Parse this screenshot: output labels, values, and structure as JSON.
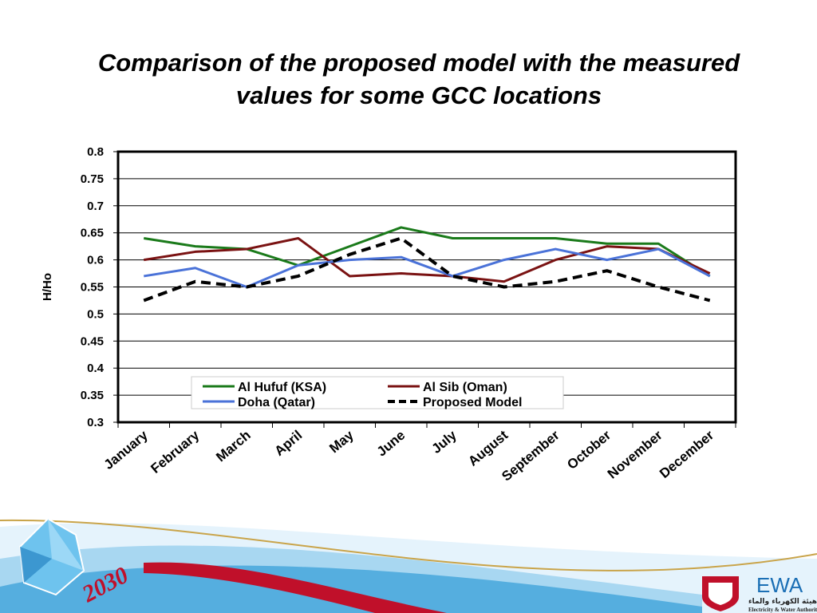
{
  "title": {
    "line1": "Comparison of the proposed model with the measured",
    "line2": "values for some GCC locations"
  },
  "chart_data": {
    "type": "line",
    "categories": [
      "January",
      "February",
      "March",
      "April",
      "May",
      "June",
      "July",
      "August",
      "September",
      "October",
      "November",
      "December"
    ],
    "ylabel": "H/Ho",
    "xlabel": "",
    "ylim": [
      0.3,
      0.8
    ],
    "yticks": [
      "0.8",
      "0.75",
      "0.7",
      "0.65",
      "0.6",
      "0.55",
      "0.5",
      "0.45",
      "0.4",
      "0.35",
      "0.3"
    ],
    "grid": true,
    "legend_position": "bottom-center",
    "series": [
      {
        "name": "Al Hufuf (KSA)",
        "color": "#1a7a1a",
        "dashed": false,
        "values": [
          0.64,
          0.625,
          0.62,
          0.59,
          0.625,
          0.66,
          0.64,
          0.64,
          0.64,
          0.63,
          0.63,
          0.57
        ]
      },
      {
        "name": "Al Sib (Oman)",
        "color": "#7a1212",
        "dashed": false,
        "values": [
          0.6,
          0.615,
          0.62,
          0.64,
          0.57,
          0.575,
          0.57,
          0.56,
          0.6,
          0.625,
          0.62,
          0.575
        ]
      },
      {
        "name": "Doha (Qatar)",
        "color": "#4a72d8",
        "dashed": false,
        "values": [
          0.57,
          0.585,
          0.55,
          0.59,
          0.6,
          0.605,
          0.57,
          0.6,
          0.62,
          0.6,
          0.62,
          0.57
        ]
      },
      {
        "name": "Proposed Model",
        "color": "#000000",
        "dashed": true,
        "values": [
          0.525,
          0.56,
          0.55,
          0.57,
          0.61,
          0.64,
          0.57,
          0.55,
          0.56,
          0.58,
          0.55,
          0.525
        ]
      }
    ]
  },
  "footer": {
    "year_badge": "2030",
    "logo_text": "EWA",
    "logo_arabic": "هيئة الكهرباء والماء",
    "logo_subtitle": "Electricity & Water Authority"
  },
  "colors": {
    "gridline": "#000000",
    "swoosh_blue": "#3aa0d8",
    "swoosh_red": "#c0102a",
    "gold": "#c9a44a"
  }
}
